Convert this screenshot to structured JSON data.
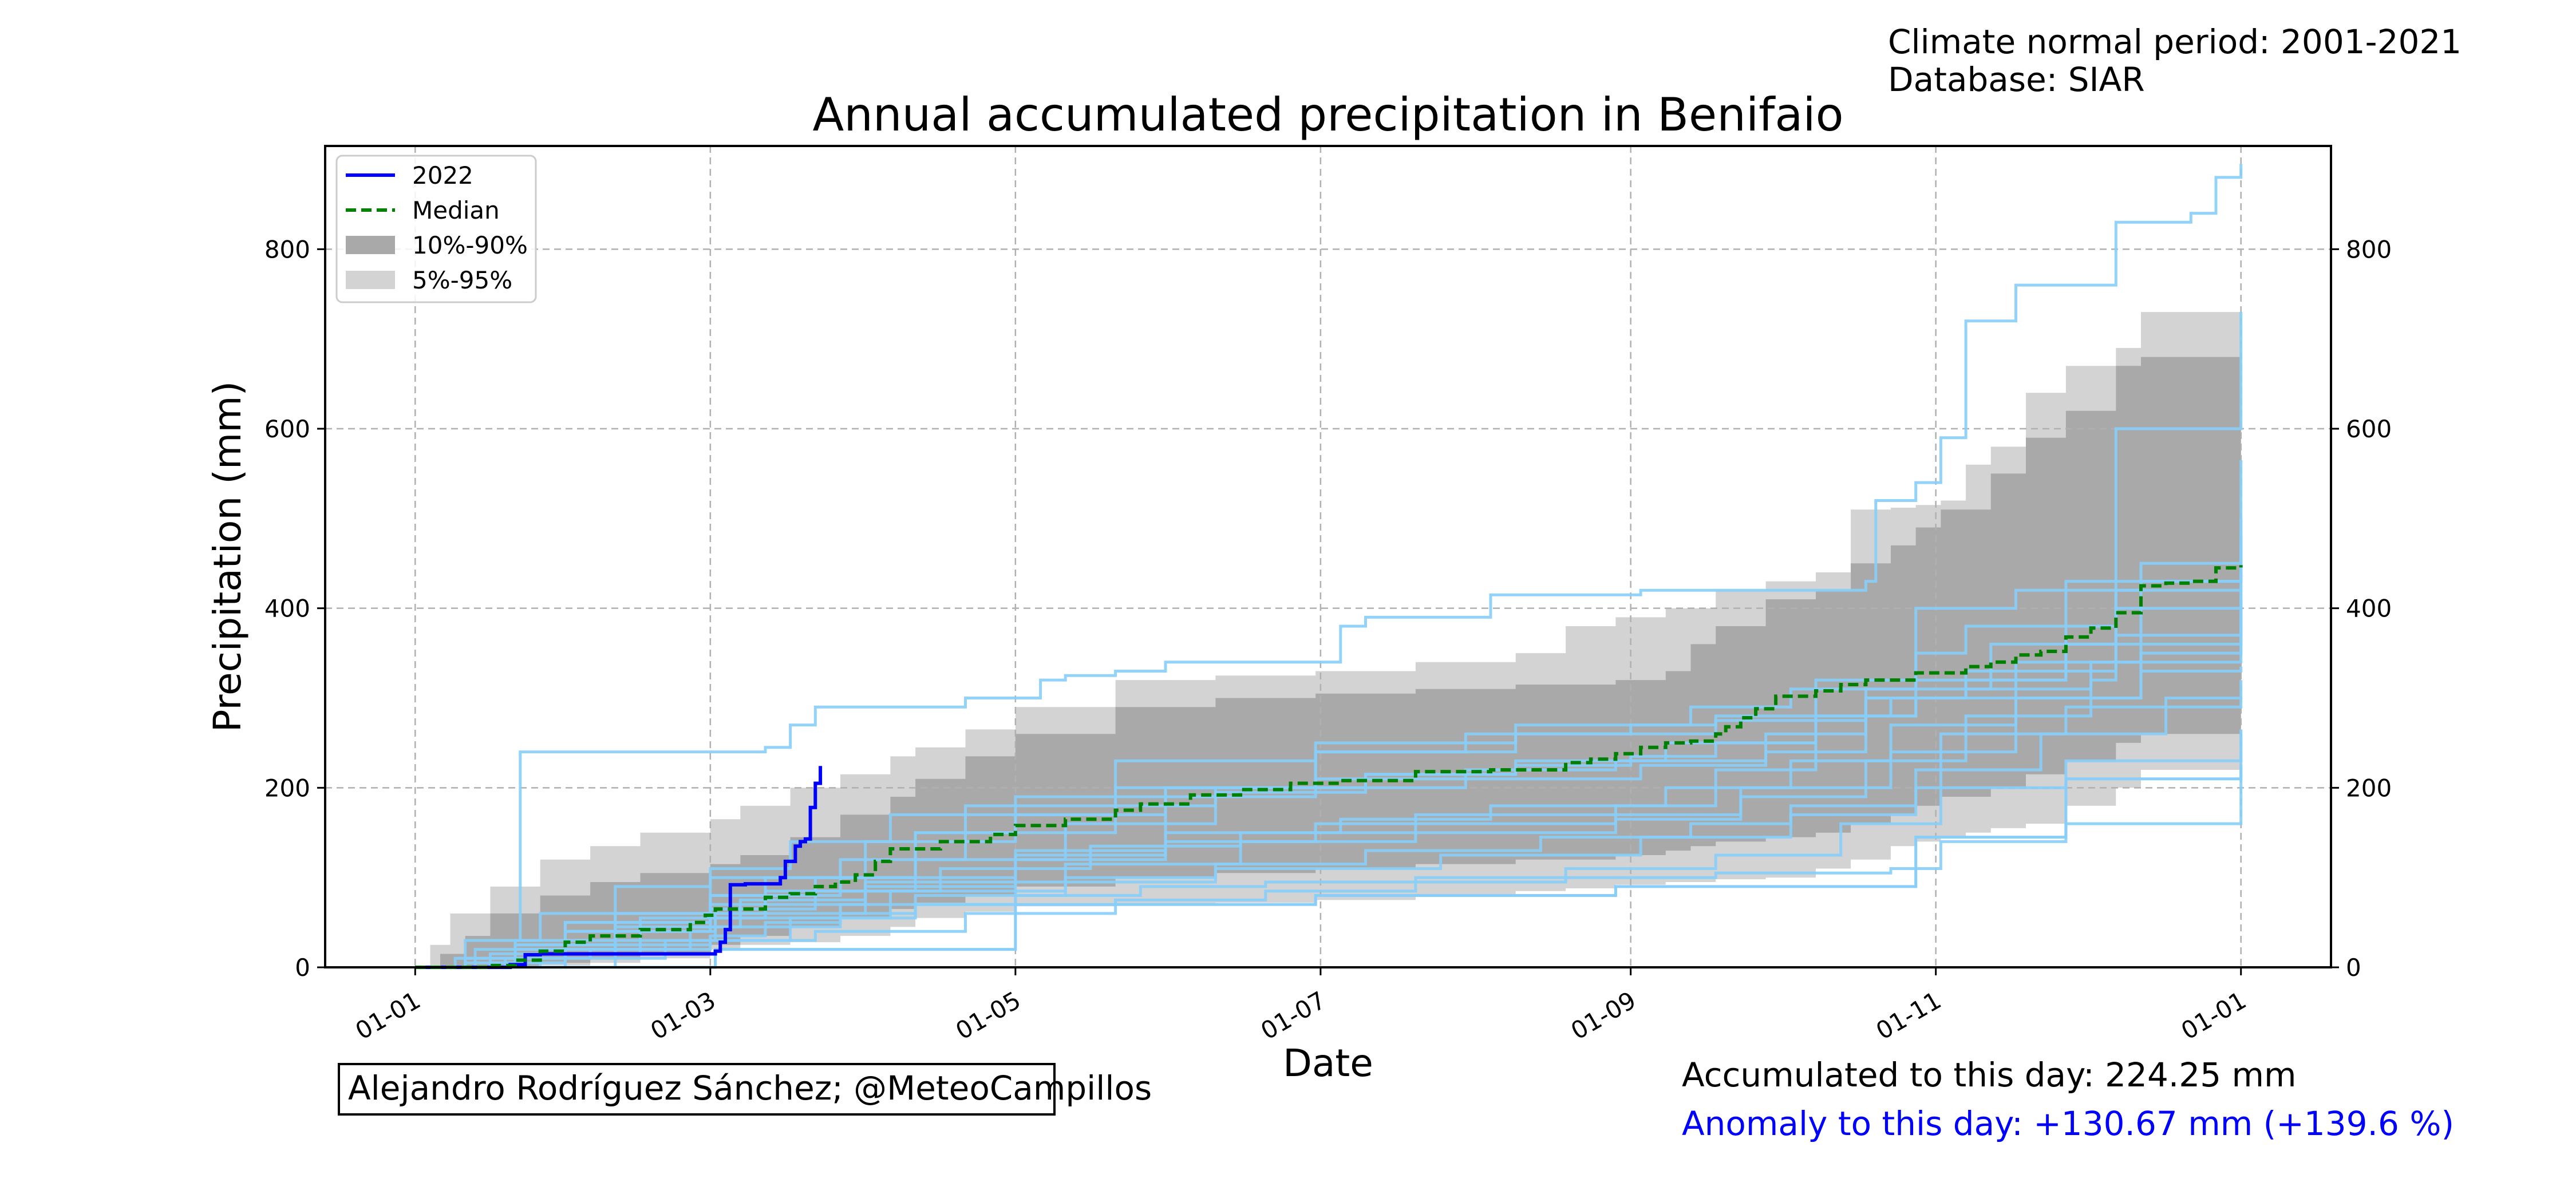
{
  "header": {
    "normal_period": "Climate normal period: 2001-2021",
    "database": "Database: SIAR"
  },
  "footer": {
    "credit": "Alejandro Rodríguez Sánchez; @MeteoCampillos",
    "accumulated": "Accumulated to this day: 224.25 mm",
    "anomaly": "Anomaly to this day: +130.67 mm (+139.6 %)"
  },
  "colors": {
    "current_year": "#0000ff",
    "median": "#008000",
    "band_10_90": "#a9a9a9",
    "band_5_95": "#d3d3d3",
    "past_years": "#87cefa",
    "anomaly_text": "#0000ff"
  },
  "chart_data": {
    "type": "line",
    "title": "Annual accumulated precipitation in Benifaio",
    "xlabel": "Date",
    "ylabel": "Precipitation (mm)",
    "x_ticks": [
      "01-01",
      "01-03",
      "01-05",
      "01-07",
      "01-09",
      "01-11",
      "01-01"
    ],
    "x_tick_days": [
      0,
      59,
      120,
      181,
      243,
      304,
      365
    ],
    "xlim": [
      -18,
      383
    ],
    "ylim": [
      0,
      915
    ],
    "y_ticks": [
      0,
      200,
      400,
      600,
      800
    ],
    "grid": true,
    "legend_position": "top-left",
    "legend": [
      "2022",
      "Median",
      "10%-90%",
      "5%-95%"
    ],
    "series": [
      {
        "name": "2022",
        "style": "solid",
        "color": "#0000ff",
        "days": [
          0,
          18,
          19,
          22,
          25,
          30,
          60,
          61,
          62,
          63,
          66,
          73,
          74,
          76,
          77,
          78,
          79,
          80,
          81
        ],
        "values": [
          0,
          0,
          3,
          14,
          15,
          15,
          18,
          28,
          42,
          92,
          93,
          100,
          118,
          135,
          140,
          143,
          178,
          205,
          224.25
        ]
      },
      {
        "name": "Median",
        "style": "dashed",
        "color": "#008000",
        "days": [
          0,
          15,
          20,
          25,
          30,
          35,
          45,
          55,
          58,
          60,
          70,
          75,
          80,
          84,
          88,
          92,
          95,
          105,
          115,
          120,
          130,
          140,
          145,
          155,
          165,
          175,
          185,
          200,
          215,
          230,
          235,
          240,
          245,
          250,
          255,
          260,
          262,
          265,
          268,
          272,
          280,
          285,
          290,
          300,
          310,
          315,
          320,
          325,
          330,
          335,
          340,
          345,
          350,
          355,
          360,
          365
        ],
        "values": [
          0,
          2,
          8,
          18,
          28,
          35,
          42,
          50,
          58,
          65,
          78,
          82,
          90,
          95,
          103,
          118,
          132,
          140,
          148,
          158,
          165,
          175,
          182,
          192,
          198,
          205,
          208,
          218,
          220,
          228,
          232,
          238,
          245,
          250,
          252,
          260,
          268,
          278,
          288,
          302,
          308,
          315,
          320,
          328,
          335,
          340,
          348,
          352,
          368,
          378,
          395,
          425,
          428,
          430,
          445,
          448
        ]
      }
    ],
    "bands": [
      {
        "name": "5%-95%",
        "days": [
          0,
          3,
          7,
          15,
          25,
          35,
          45,
          59,
          65,
          75,
          85,
          95,
          100,
          110,
          120,
          140,
          160,
          180,
          200,
          220,
          230,
          240,
          250,
          260,
          270,
          280,
          287,
          295,
          300,
          305,
          310,
          315,
          322,
          330,
          340,
          345,
          365
        ],
        "upper": [
          0,
          25,
          60,
          90,
          120,
          135,
          150,
          165,
          180,
          200,
          215,
          235,
          245,
          265,
          290,
          320,
          325,
          330,
          340,
          350,
          380,
          390,
          400,
          420,
          430,
          440,
          510,
          512,
          515,
          520,
          560,
          580,
          640,
          670,
          690,
          730,
          730
        ],
        "lower": [
          0,
          0,
          0,
          0,
          2,
          5,
          10,
          20,
          25,
          28,
          35,
          45,
          55,
          62,
          68,
          70,
          72,
          75,
          80,
          85,
          88,
          92,
          95,
          98,
          100,
          110,
          120,
          135,
          140,
          145,
          150,
          155,
          160,
          180,
          200,
          220,
          225
        ]
      },
      {
        "name": "10%-90%",
        "days": [
          0,
          5,
          10,
          15,
          25,
          35,
          45,
          59,
          65,
          75,
          85,
          95,
          100,
          110,
          120,
          140,
          160,
          180,
          200,
          220,
          240,
          250,
          255,
          260,
          270,
          280,
          287,
          295,
          300,
          305,
          315,
          322,
          330,
          340,
          345,
          365
        ],
        "upper": [
          0,
          15,
          35,
          60,
          80,
          95,
          105,
          115,
          125,
          145,
          170,
          190,
          210,
          235,
          260,
          290,
          300,
          305,
          310,
          315,
          320,
          330,
          360,
          380,
          410,
          420,
          450,
          470,
          490,
          510,
          550,
          590,
          620,
          670,
          680,
          680
        ],
        "lower": [
          0,
          0,
          0,
          0,
          5,
          10,
          15,
          25,
          35,
          45,
          55,
          65,
          72,
          80,
          90,
          100,
          105,
          110,
          115,
          120,
          125,
          130,
          135,
          140,
          145,
          150,
          160,
          170,
          180,
          190,
          200,
          215,
          230,
          250,
          260,
          265
        ]
      }
    ],
    "historical_years": [
      {
        "days": [
          0,
          10,
          20,
          21,
          50,
          70,
          75,
          80,
          110,
          125,
          130,
          140,
          150,
          185,
          190,
          215,
          245,
          290,
          292,
          300,
          305,
          310,
          320,
          340,
          355,
          360,
          365
        ],
        "values": [
          0,
          5,
          30,
          240,
          240,
          245,
          270,
          290,
          300,
          320,
          325,
          330,
          340,
          380,
          390,
          415,
          420,
          430,
          520,
          540,
          590,
          720,
          760,
          830,
          840,
          880,
          895
        ]
      },
      {
        "days": [
          0,
          30,
          60,
          90,
          120,
          150,
          180,
          210,
          243,
          260,
          290,
          295,
          310,
          335,
          340,
          365
        ],
        "values": [
          0,
          40,
          60,
          90,
          130,
          200,
          240,
          260,
          270,
          275,
          280,
          300,
          310,
          320,
          600,
          730
        ]
      },
      {
        "days": [
          0,
          10,
          20,
          30,
          59,
          90,
          120,
          150,
          180,
          200,
          240,
          260,
          280,
          300,
          310,
          340,
          365
        ],
        "values": [
          0,
          10,
          30,
          50,
          70,
          100,
          120,
          140,
          160,
          170,
          180,
          220,
          320,
          350,
          380,
          400,
          410
        ]
      },
      {
        "days": [
          0,
          15,
          30,
          45,
          59,
          70,
          85,
          100,
          120,
          145,
          170,
          200,
          230,
          260,
          295,
          305,
          330,
          365
        ],
        "values": [
          0,
          5,
          15,
          25,
          35,
          50,
          60,
          70,
          80,
          90,
          95,
          100,
          100,
          105,
          110,
          140,
          160,
          260
        ]
      },
      {
        "days": [
          0,
          20,
          40,
          59,
          80,
          100,
          120,
          140,
          160,
          190,
          220,
          243,
          260,
          280,
          300,
          330,
          365
        ],
        "values": [
          0,
          20,
          60,
          80,
          100,
          150,
          170,
          180,
          200,
          215,
          225,
          235,
          250,
          280,
          320,
          430,
          500
        ]
      },
      {
        "days": [
          0,
          10,
          25,
          40,
          59,
          75,
          95,
          120,
          150,
          180,
          210,
          240,
          270,
          290,
          310,
          330,
          365
        ],
        "values": [
          0,
          30,
          60,
          90,
          110,
          140,
          170,
          190,
          200,
          210,
          220,
          230,
          240,
          300,
          320,
          360,
          470
        ]
      },
      {
        "days": [
          0,
          30,
          59,
          85,
          110,
          140,
          180,
          220,
          255,
          275,
          300,
          320,
          345,
          365
        ],
        "values": [
          0,
          40,
          80,
          120,
          180,
          230,
          250,
          270,
          290,
          310,
          400,
          420,
          430,
          440
        ]
      },
      {
        "days": [
          0,
          18,
          35,
          59,
          80,
          110,
          140,
          170,
          200,
          230,
          260,
          285,
          305,
          330,
          365
        ],
        "values": [
          0,
          10,
          20,
          30,
          40,
          60,
          75,
          85,
          95,
          110,
          125,
          160,
          260,
          290,
          300
        ]
      },
      {
        "days": [
          0,
          20,
          45,
          70,
          100,
          130,
          160,
          190,
          220,
          250,
          280,
          300,
          320,
          345,
          365
        ],
        "values": [
          0,
          25,
          55,
          85,
          120,
          160,
          195,
          215,
          230,
          250,
          280,
          300,
          340,
          450,
          565
        ]
      },
      {
        "days": [
          0,
          15,
          40,
          65,
          90,
          120,
          150,
          185,
          215,
          250,
          275,
          295,
          320,
          345,
          365
        ],
        "values": [
          0,
          15,
          45,
          75,
          95,
          125,
          150,
          165,
          180,
          200,
          230,
          270,
          300,
          330,
          335
        ]
      },
      {
        "days": [
          0,
          25,
          50,
          75,
          100,
          130,
          160,
          190,
          225,
          255,
          275,
          300,
          325,
          350,
          365
        ],
        "values": [
          0,
          10,
          30,
          55,
          80,
          100,
          115,
          130,
          145,
          160,
          180,
          220,
          260,
          300,
          320
        ]
      },
      {
        "days": [
          0,
          12,
          30,
          59,
          90,
          120,
          150,
          180,
          210,
          245,
          270,
          290,
          315,
          340,
          365
        ],
        "values": [
          0,
          20,
          50,
          100,
          140,
          170,
          190,
          200,
          210,
          225,
          260,
          310,
          360,
          420,
          480
        ]
      },
      {
        "days": [
          0,
          30,
          60,
          95,
          130,
          165,
          200,
          240,
          265,
          295,
          320,
          345,
          365
        ],
        "values": [
          0,
          30,
          55,
          85,
          115,
          140,
          150,
          165,
          200,
          240,
          300,
          350,
          380
        ]
      },
      {
        "days": [
          0,
          8,
          20,
          40,
          59,
          80,
          105,
          135,
          165,
          200,
          240,
          265,
          290,
          310,
          335,
          365
        ],
        "values": [
          0,
          10,
          25,
          50,
          65,
          85,
          110,
          135,
          150,
          160,
          170,
          190,
          230,
          280,
          340,
          400
        ]
      },
      {
        "days": [
          0,
          40,
          70,
          100,
          140,
          180,
          220,
          260,
          290,
          310,
          340,
          365
        ],
        "values": [
          0,
          60,
          100,
          150,
          200,
          240,
          260,
          280,
          300,
          330,
          370,
          420
        ]
      },
      {
        "days": [
          0,
          25,
          55,
          85,
          120,
          160,
          205,
          245,
          275,
          300,
          330,
          365
        ],
        "values": [
          0,
          20,
          45,
          70,
          95,
          110,
          125,
          145,
          170,
          200,
          230,
          265
        ]
      }
    ],
    "future_line": {
      "days": [
        0,
        60,
        120,
        180,
        240,
        300,
        330,
        365
      ],
      "values": [
        0,
        20,
        70,
        80,
        90,
        145,
        210,
        225
      ]
    }
  }
}
